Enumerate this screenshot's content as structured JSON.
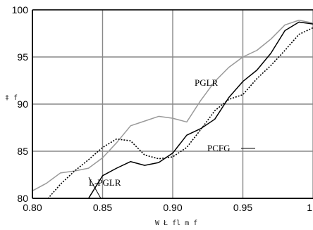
{
  "chart_data": {
    "type": "line",
    "xlabel": "W Ł fl m f",
    "ylabel": "‡ f",
    "xlim": [
      0.8,
      1.0
    ],
    "ylim": [
      80,
      100
    ],
    "x_ticks": [
      "0.80",
      "0.85",
      "0.90",
      "0.95",
      "1"
    ],
    "y_ticks": [
      "80",
      "85",
      "90",
      "95",
      "100"
    ],
    "grid": true,
    "legend": "inline labels",
    "series": [
      {
        "name": "PGLR",
        "color": "#9a9a9a",
        "style": "solid",
        "points": [
          [
            0.8,
            80.8
          ],
          [
            0.81,
            81.6
          ],
          [
            0.82,
            82.7
          ],
          [
            0.83,
            82.9
          ],
          [
            0.84,
            83.2
          ],
          [
            0.85,
            84.3
          ],
          [
            0.86,
            85.9
          ],
          [
            0.87,
            87.7
          ],
          [
            0.88,
            88.2
          ],
          [
            0.89,
            88.7
          ],
          [
            0.9,
            88.5
          ],
          [
            0.91,
            88.1
          ],
          [
            0.92,
            90.4
          ],
          [
            0.93,
            92.4
          ],
          [
            0.94,
            93.9
          ],
          [
            0.95,
            95.0
          ],
          [
            0.96,
            95.7
          ],
          [
            0.97,
            96.9
          ],
          [
            0.98,
            98.4
          ],
          [
            0.99,
            98.9
          ],
          [
            1.0,
            98.6
          ]
        ]
      },
      {
        "name": "L-PGLR",
        "color": "#000000",
        "style": "solid",
        "points": [
          [
            0.8,
            79.3
          ],
          [
            0.81,
            79.6
          ],
          [
            0.82,
            79.8
          ],
          [
            0.83,
            79.8
          ],
          [
            0.84,
            80.0
          ],
          [
            0.85,
            82.4
          ],
          [
            0.86,
            83.2
          ],
          [
            0.87,
            83.9
          ],
          [
            0.88,
            83.5
          ],
          [
            0.89,
            83.8
          ],
          [
            0.9,
            84.8
          ],
          [
            0.91,
            86.7
          ],
          [
            0.92,
            87.4
          ],
          [
            0.93,
            88.4
          ],
          [
            0.94,
            90.7
          ],
          [
            0.95,
            92.4
          ],
          [
            0.96,
            93.6
          ],
          [
            0.97,
            95.4
          ],
          [
            0.98,
            97.8
          ],
          [
            0.99,
            98.7
          ],
          [
            1.0,
            98.5
          ]
        ]
      },
      {
        "name": "PCFG",
        "color": "#000000",
        "style": "dotted",
        "points": [
          [
            0.8,
            79.3
          ],
          [
            0.81,
            79.8
          ],
          [
            0.82,
            81.5
          ],
          [
            0.83,
            82.9
          ],
          [
            0.84,
            84.1
          ],
          [
            0.85,
            85.4
          ],
          [
            0.86,
            86.3
          ],
          [
            0.87,
            86.1
          ],
          [
            0.88,
            84.6
          ],
          [
            0.89,
            84.2
          ],
          [
            0.9,
            84.4
          ],
          [
            0.91,
            85.4
          ],
          [
            0.92,
            87.3
          ],
          [
            0.93,
            89.3
          ],
          [
            0.94,
            90.5
          ],
          [
            0.95,
            91.0
          ],
          [
            0.96,
            92.7
          ],
          [
            0.97,
            94.1
          ],
          [
            0.98,
            95.7
          ],
          [
            0.99,
            97.4
          ],
          [
            1.0,
            98.1
          ]
        ]
      }
    ],
    "annotations": [
      {
        "text": "PGLR",
        "series": 0
      },
      {
        "text": "L-PGLR",
        "series": 1
      },
      {
        "text": "PCFG",
        "series": 2
      }
    ]
  }
}
